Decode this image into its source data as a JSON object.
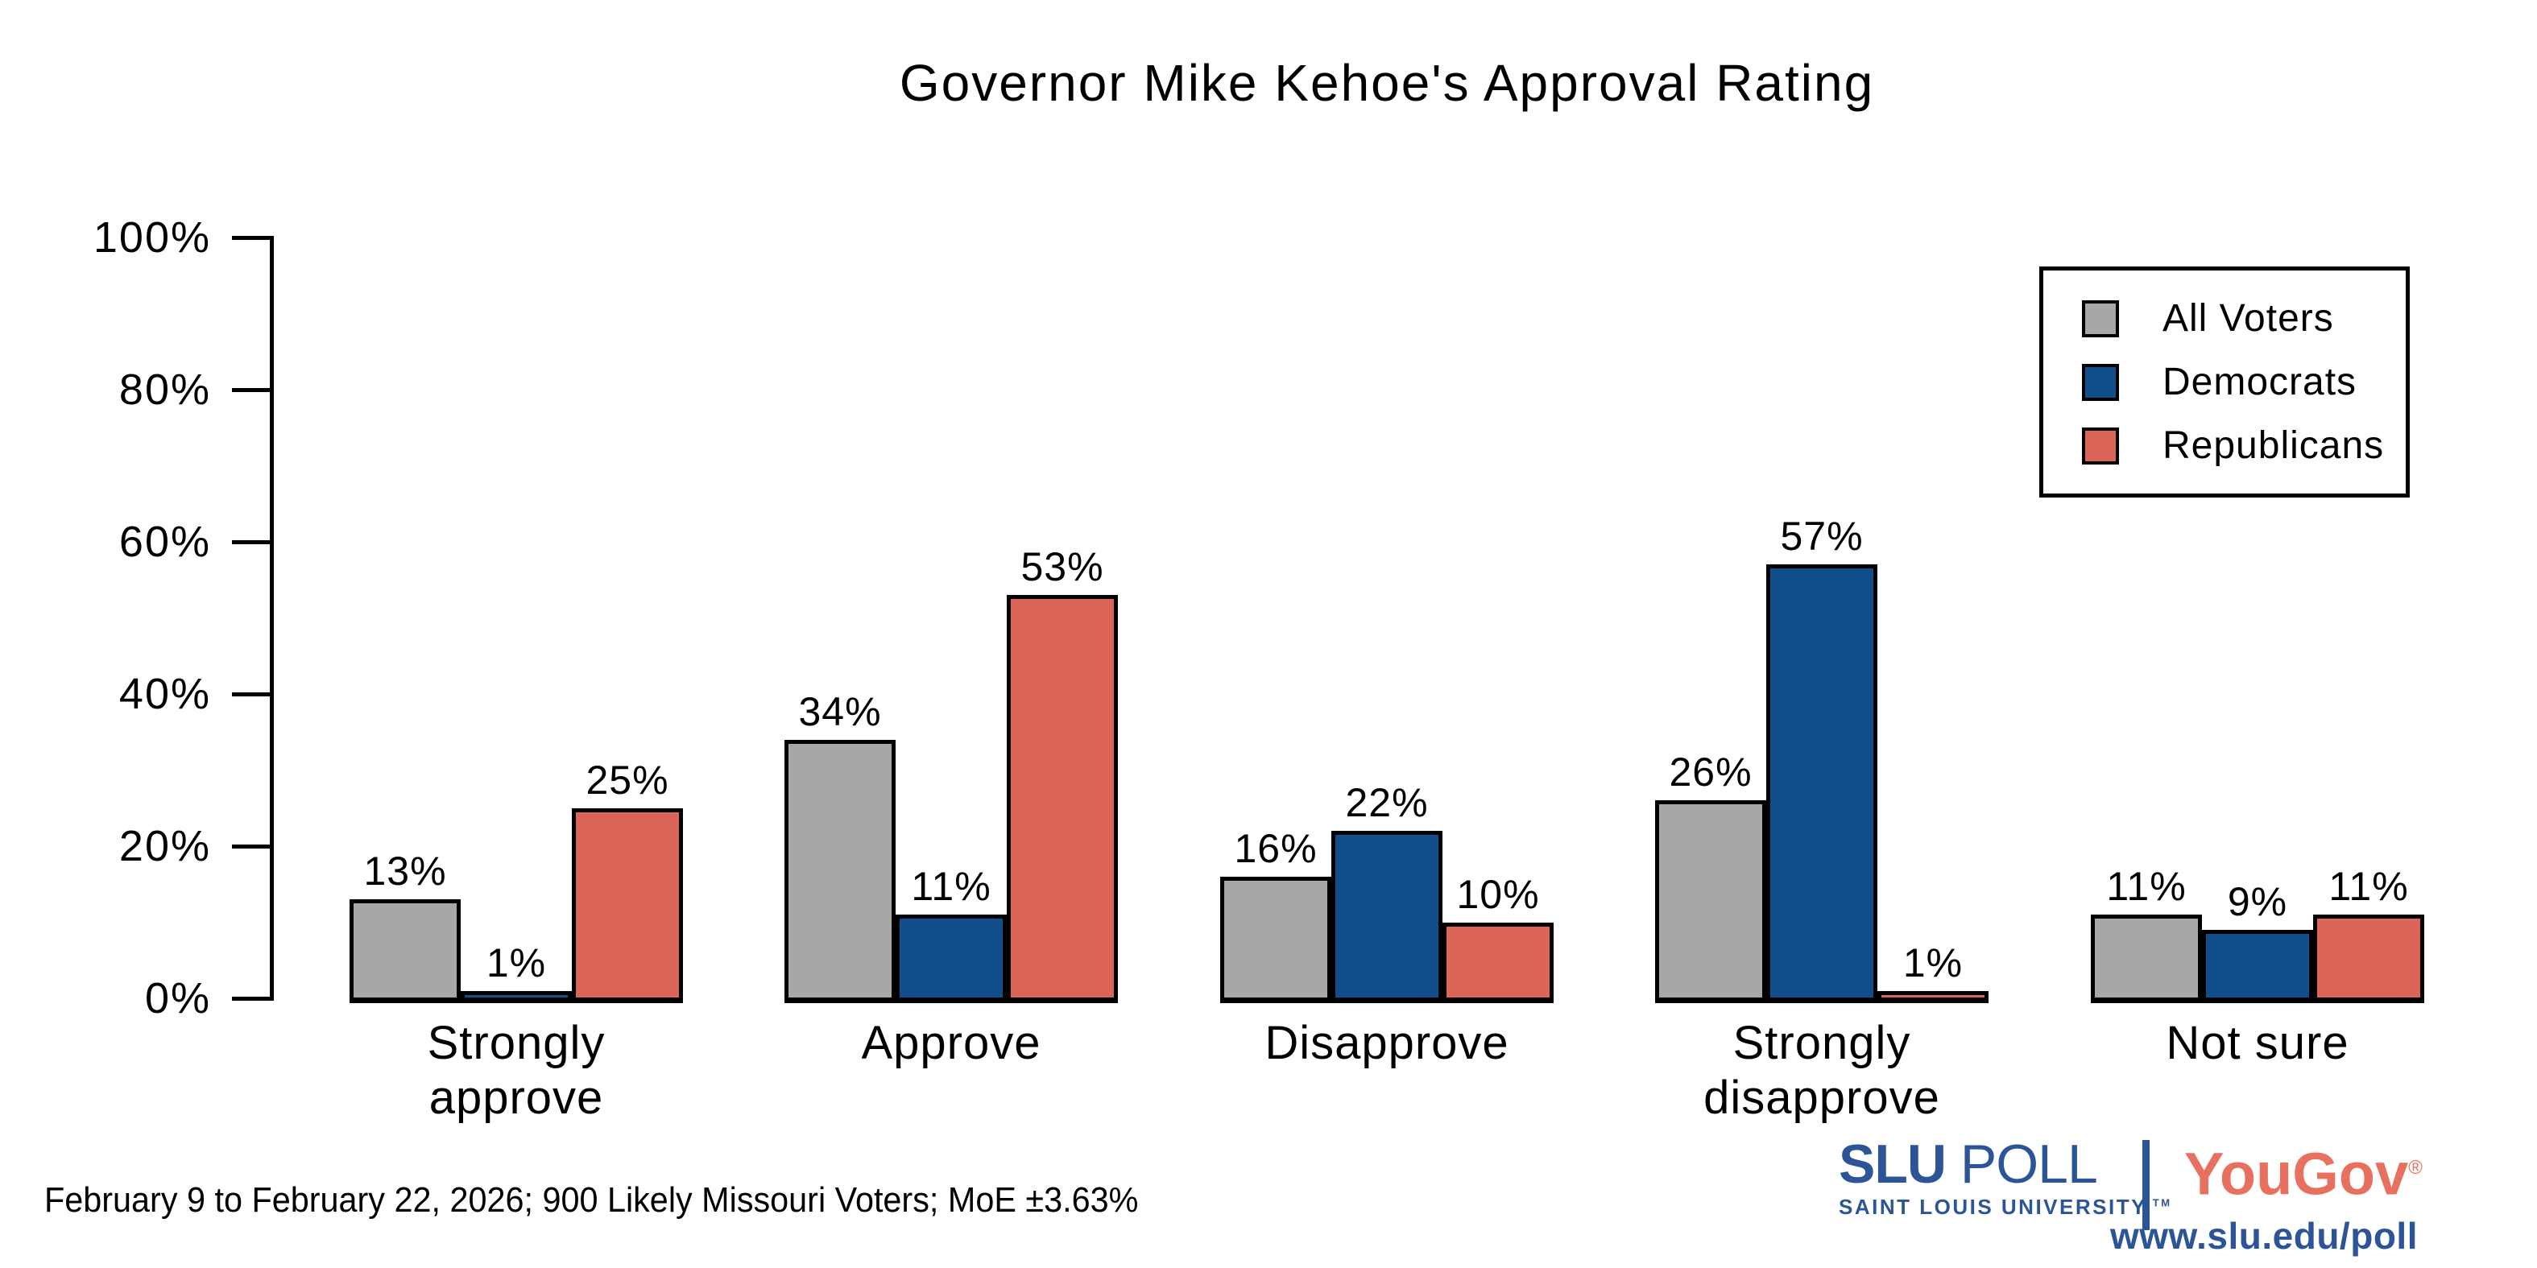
{
  "footnote": "February 9 to February 22, 2026; 900 Likely Missouri Voters; MoE ±3.63%",
  "chart_data": {
    "type": "bar",
    "title": "Governor Mike Kehoe's Approval Rating",
    "categories": [
      "Strongly approve",
      "Approve",
      "Disapprove",
      "Strongly disapprove",
      "Not sure"
    ],
    "category_display": [
      "Strongly\napprove",
      "Approve",
      "Disapprove",
      "Strongly\ndisapprove",
      "Not sure"
    ],
    "series": [
      {
        "name": "All Voters",
        "color": "#a7a7a7",
        "values": [
          13,
          34,
          16,
          26,
          11
        ]
      },
      {
        "name": "Democrats",
        "color": "#114e8b",
        "values": [
          1,
          11,
          22,
          57,
          9
        ]
      },
      {
        "name": "Republicans",
        "color": "#db6558",
        "values": [
          25,
          53,
          10,
          1,
          11
        ]
      }
    ],
    "value_suffix": "%",
    "xlabel": "",
    "ylabel": "",
    "ylim": [
      0,
      100
    ],
    "y_ticks": [
      "100%",
      "80%",
      "60%",
      "40%",
      "20%",
      "0%"
    ],
    "y_tick_values": [
      100,
      80,
      60,
      40,
      20,
      0
    ],
    "grid": false,
    "legend_position": "top-right",
    "bar_outline_color": "#000000"
  },
  "branding": {
    "slu": "SLU",
    "poll": "POLL",
    "slu_subtitle": "SAINT LOUIS UNIVERSITY.",
    "trademark": "TM",
    "partner": "YouGov",
    "registered": "®",
    "url": "www.slu.edu/poll",
    "slu_blue": "#2b5596",
    "yougov_red": "#e8705f"
  }
}
